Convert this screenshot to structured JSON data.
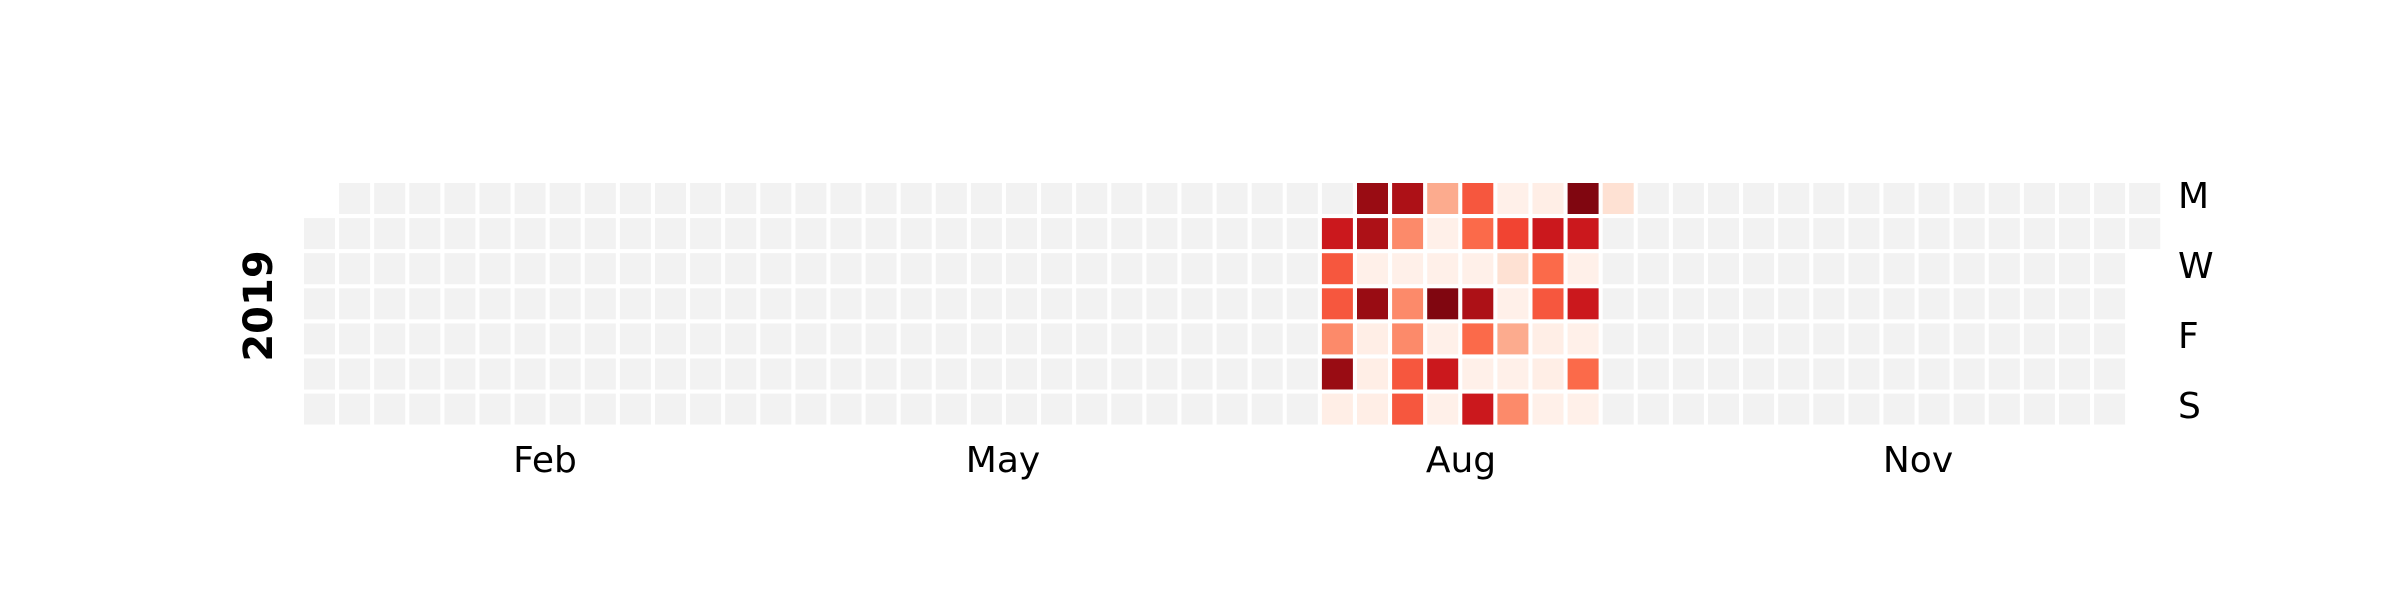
{
  "chart_data": {
    "type": "heatmap",
    "title": "",
    "year_label": "2019",
    "x_tick_labels": [
      "Feb",
      "May",
      "Aug",
      "Nov"
    ],
    "y_tick_labels": [
      "M",
      "W",
      "F",
      "S"
    ],
    "weekday_order": [
      "Mon",
      "Tue",
      "Wed",
      "Thu",
      "Fri",
      "Sat",
      "Sun"
    ],
    "colormap": "Reds",
    "empty_color": "#f2f2f2",
    "grid_shape": {
      "weeks": 53,
      "days_per_week": 7
    },
    "value_scale_note": "values in [0,1], estimated from color intensity; only weeks 29-37 hold data, all other days are empty",
    "weeks": [
      {
        "week": 29,
        "values": [
          null,
          0.75,
          0.55,
          0.55,
          0.4,
          0.9,
          0.04
        ]
      },
      {
        "week": 30,
        "values": [
          0.9,
          0.85,
          0.03,
          0.9,
          0.04,
          0.04,
          0.04
        ]
      },
      {
        "week": 31,
        "values": [
          0.85,
          0.4,
          0.03,
          0.4,
          0.4,
          0.55,
          0.55
        ]
      },
      {
        "week": 32,
        "values": [
          0.3,
          0.03,
          0.03,
          0.95,
          0.03,
          0.75,
          0.03
        ]
      },
      {
        "week": 33,
        "values": [
          0.55,
          0.5,
          0.03,
          0.85,
          0.5,
          0.03,
          0.75
        ]
      },
      {
        "week": 34,
        "values": [
          0.03,
          0.6,
          0.12,
          0.03,
          0.3,
          0.03,
          0.4
        ]
      },
      {
        "week": 35,
        "values": [
          0.04,
          0.75,
          0.5,
          0.55,
          0.04,
          0.04,
          0.03
        ]
      },
      {
        "week": 36,
        "values": [
          0.95,
          0.75,
          0.03,
          0.75,
          0.03,
          0.5,
          0.03
        ]
      },
      {
        "week": 37,
        "values": [
          0.12,
          null,
          null,
          null,
          null,
          null,
          null
        ]
      }
    ]
  }
}
